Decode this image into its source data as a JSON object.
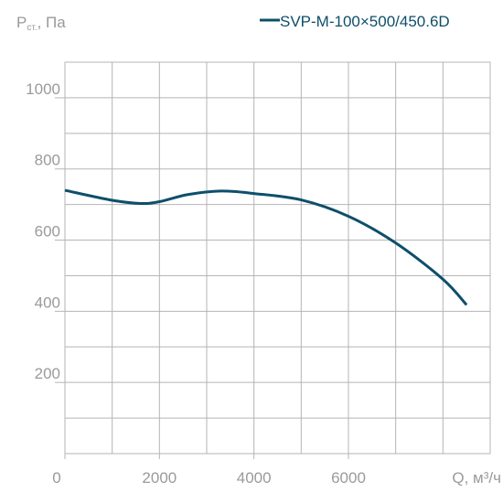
{
  "chart_data": {
    "type": "line",
    "y_label_main": "P",
    "y_label_sub": "ст.",
    "y_label_unit": ", Па",
    "x_label": "Q, м³/ч",
    "x": [
      0,
      1000,
      1600,
      2000,
      2600,
      3300,
      4000,
      5000,
      6000,
      7000,
      8000,
      8500
    ],
    "series": [
      {
        "name": "SVP-M-100×500/450.6D",
        "color": "#0d4f6b",
        "values": [
          740,
          712,
          703,
          708,
          728,
          738,
          731,
          713,
          667,
          592,
          490,
          418
        ]
      }
    ],
    "xlim": [
      0,
      9000
    ],
    "xticks": [
      0,
      2000,
      4000,
      6000
    ],
    "xgrid": [
      1000,
      2000,
      3000,
      4000,
      5000,
      6000,
      7000,
      8000
    ],
    "ylim": [
      0,
      1100
    ],
    "yticks": [
      200,
      400,
      600,
      800,
      1000
    ],
    "ygrid": [
      100,
      200,
      300,
      400,
      500,
      600,
      700,
      800,
      900,
      1000
    ],
    "grid": true
  }
}
